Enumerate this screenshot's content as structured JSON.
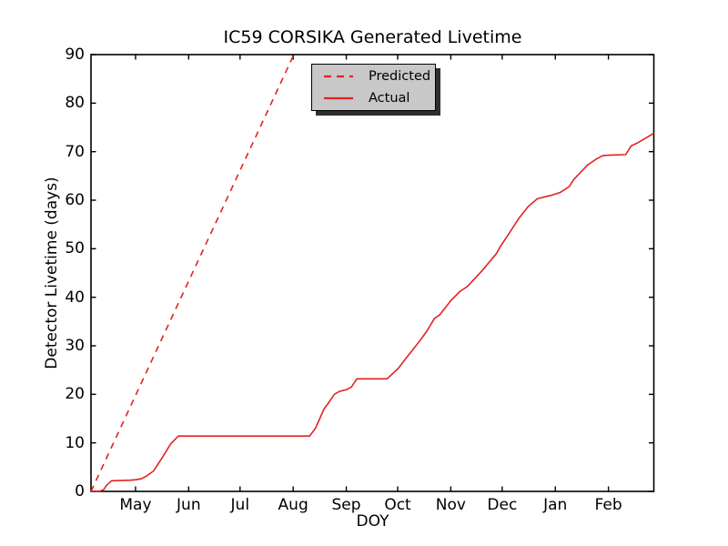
{
  "colors": {
    "line": "#e22222",
    "axes": "#000000",
    "background": "#ffffff",
    "legend_bg": "#c8c8c8",
    "legend_shadow": "#2e2e2e"
  },
  "chart_data": {
    "type": "line",
    "title": "IC59 CORSIKA Generated Livetime",
    "xlabel": "DOY",
    "ylabel": "Detector Livetime (days)",
    "xlim": [
      95,
      423.5
    ],
    "ylim": [
      0,
      90
    ],
    "grid": false,
    "legend_position": "upper center",
    "x_ticks": [
      {
        "label": "May",
        "doy": 121
      },
      {
        "label": "Jun",
        "doy": 152
      },
      {
        "label": "Jul",
        "doy": 182
      },
      {
        "label": "Aug",
        "doy": 213
      },
      {
        "label": "Sep",
        "doy": 244
      },
      {
        "label": "Oct",
        "doy": 274
      },
      {
        "label": "Nov",
        "doy": 305
      },
      {
        "label": "Dec",
        "doy": 335
      },
      {
        "label": "Jan",
        "doy": 366
      },
      {
        "label": "Feb",
        "doy": 397
      }
    ],
    "y_ticks": [
      0,
      10,
      20,
      30,
      40,
      50,
      60,
      70,
      80,
      90
    ],
    "series": [
      {
        "name": "Predicted",
        "style": "dashed",
        "color": "#e22222",
        "points": [
          [
            95,
            0
          ],
          [
            213.4,
            90
          ]
        ]
      },
      {
        "name": "Actual",
        "style": "solid",
        "color": "#e22222",
        "points": [
          [
            95.0,
            0.0
          ],
          [
            100.5,
            0.1
          ],
          [
            102.5,
            0.4
          ],
          [
            104.0,
            1.2
          ],
          [
            107.0,
            2.2
          ],
          [
            118.0,
            2.3
          ],
          [
            121.0,
            2.4
          ],
          [
            124.5,
            2.6
          ],
          [
            127.5,
            3.2
          ],
          [
            131.5,
            4.2
          ],
          [
            136.5,
            6.9
          ],
          [
            141.5,
            9.8
          ],
          [
            146.0,
            11.4
          ],
          [
            222.6,
            11.4
          ],
          [
            226.0,
            13.0
          ],
          [
            228.5,
            15.0
          ],
          [
            231.0,
            17.0
          ],
          [
            233.0,
            17.9
          ],
          [
            237.0,
            20.0
          ],
          [
            240.0,
            20.6
          ],
          [
            244.4,
            21.0
          ],
          [
            247.0,
            21.5
          ],
          [
            248.5,
            22.3
          ],
          [
            250.2,
            23.2
          ],
          [
            267.8,
            23.2
          ],
          [
            274.2,
            25.3
          ],
          [
            278.4,
            27.2
          ],
          [
            286.4,
            30.8
          ],
          [
            291.0,
            33.0
          ],
          [
            295.4,
            35.6
          ],
          [
            298.6,
            36.4
          ],
          [
            305.0,
            39.3
          ],
          [
            310.3,
            41.2
          ],
          [
            314.6,
            42.2
          ],
          [
            323.6,
            45.6
          ],
          [
            327.3,
            47.2
          ],
          [
            331.6,
            49.0
          ],
          [
            334.2,
            50.6
          ],
          [
            339.5,
            53.4
          ],
          [
            344.8,
            56.3
          ],
          [
            350.2,
            58.7
          ],
          [
            355.5,
            60.3
          ],
          [
            363.5,
            61.0
          ],
          [
            368.8,
            61.6
          ],
          [
            374.1,
            62.8
          ],
          [
            376.8,
            64.3
          ],
          [
            384.7,
            67.2
          ],
          [
            390.0,
            68.5
          ],
          [
            393.8,
            69.2
          ],
          [
            398.0,
            69.3
          ],
          [
            407.1,
            69.4
          ],
          [
            410.3,
            71.2
          ],
          [
            414.0,
            71.8
          ],
          [
            423.5,
            73.8
          ]
        ]
      }
    ]
  }
}
